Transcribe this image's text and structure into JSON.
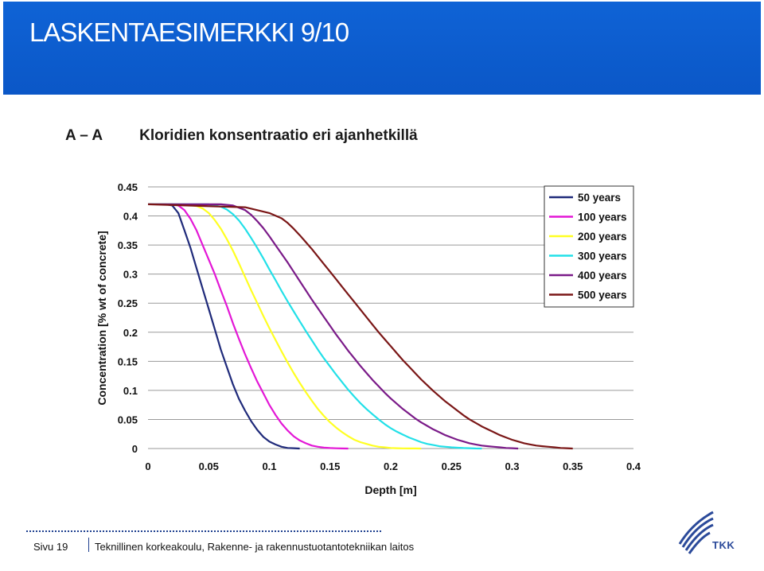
{
  "slide": {
    "title": "LASKENTAESIMERKKI 9/10"
  },
  "chart_heading": {
    "section": "A – A",
    "title": "Kloridien konsentraatio eri ajanhetkillä"
  },
  "footer": {
    "page": "Sivu 19",
    "organization": "Teknillinen korkeakoulu, Rakenne- ja rakennustuotantotekniikan laitos",
    "logo_text": "TKK"
  },
  "chart_data": {
    "type": "line",
    "xlabel": "Depth [m]",
    "ylabel": "Concentration [% wt of concrete]",
    "xlim": [
      0,
      0.4
    ],
    "ylim": [
      0,
      0.45
    ],
    "x_ticks": [
      "0",
      "0.05",
      "0.1",
      "0.15",
      "0.2",
      "0.25",
      "0.3",
      "0.35",
      "0.4"
    ],
    "y_ticks": [
      "0",
      "0.05",
      "0.1",
      "0.15",
      "0.2",
      "0.25",
      "0.3",
      "0.35",
      "0.4",
      "0.45"
    ],
    "grid": true,
    "legend_position": "top-right",
    "series": [
      {
        "name": "50 years",
        "color": "#1f2a7a",
        "x": [
          0,
          0.015,
          0.02,
          0.025,
          0.03,
          0.035,
          0.04,
          0.045,
          0.05,
          0.055,
          0.06,
          0.065,
          0.07,
          0.075,
          0.08,
          0.085,
          0.09,
          0.095,
          0.1,
          0.105,
          0.11,
          0.115,
          0.12,
          0.125
        ],
        "y": [
          0.42,
          0.42,
          0.418,
          0.405,
          0.375,
          0.345,
          0.31,
          0.275,
          0.24,
          0.205,
          0.17,
          0.14,
          0.11,
          0.085,
          0.065,
          0.047,
          0.032,
          0.02,
          0.012,
          0.007,
          0.003,
          0.001,
          0.0005,
          0
        ]
      },
      {
        "name": "100 years",
        "color": "#e317d6",
        "x": [
          0,
          0.02,
          0.025,
          0.03,
          0.035,
          0.04,
          0.045,
          0.05,
          0.055,
          0.06,
          0.065,
          0.07,
          0.075,
          0.08,
          0.085,
          0.09,
          0.095,
          0.1,
          0.105,
          0.11,
          0.115,
          0.12,
          0.125,
          0.13,
          0.135,
          0.14,
          0.145,
          0.15,
          0.155,
          0.16,
          0.165
        ],
        "y": [
          0.42,
          0.42,
          0.418,
          0.41,
          0.395,
          0.375,
          0.35,
          0.325,
          0.3,
          0.272,
          0.245,
          0.215,
          0.188,
          0.162,
          0.138,
          0.115,
          0.095,
          0.075,
          0.058,
          0.043,
          0.031,
          0.021,
          0.014,
          0.009,
          0.005,
          0.003,
          0.0015,
          0.0008,
          0.0004,
          0.0002,
          0
        ]
      },
      {
        "name": "200 years",
        "color": "#ffff22",
        "x": [
          0,
          0.03,
          0.04,
          0.045,
          0.05,
          0.055,
          0.06,
          0.065,
          0.07,
          0.075,
          0.08,
          0.085,
          0.09,
          0.095,
          0.1,
          0.105,
          0.11,
          0.115,
          0.12,
          0.125,
          0.13,
          0.135,
          0.14,
          0.145,
          0.15,
          0.155,
          0.16,
          0.165,
          0.17,
          0.175,
          0.18,
          0.185,
          0.19,
          0.195,
          0.2,
          0.205,
          0.21,
          0.215,
          0.22,
          0.225
        ],
        "y": [
          0.42,
          0.42,
          0.417,
          0.413,
          0.405,
          0.393,
          0.378,
          0.36,
          0.34,
          0.318,
          0.295,
          0.272,
          0.25,
          0.228,
          0.207,
          0.187,
          0.167,
          0.148,
          0.13,
          0.113,
          0.097,
          0.082,
          0.068,
          0.056,
          0.045,
          0.036,
          0.028,
          0.021,
          0.015,
          0.011,
          0.008,
          0.005,
          0.003,
          0.002,
          0.001,
          0.0006,
          0.0003,
          0.0002,
          0.0001,
          0
        ]
      },
      {
        "name": "300 years",
        "color": "#22e0e8",
        "x": [
          0,
          0.05,
          0.06,
          0.065,
          0.07,
          0.075,
          0.08,
          0.085,
          0.09,
          0.095,
          0.1,
          0.105,
          0.11,
          0.115,
          0.12,
          0.125,
          0.13,
          0.135,
          0.14,
          0.145,
          0.15,
          0.155,
          0.16,
          0.165,
          0.17,
          0.175,
          0.18,
          0.185,
          0.19,
          0.195,
          0.2,
          0.205,
          0.21,
          0.215,
          0.22,
          0.225,
          0.23,
          0.235,
          0.24,
          0.245,
          0.25,
          0.255,
          0.26,
          0.265,
          0.27,
          0.275
        ],
        "y": [
          0.42,
          0.42,
          0.416,
          0.411,
          0.403,
          0.392,
          0.378,
          0.362,
          0.345,
          0.327,
          0.308,
          0.29,
          0.271,
          0.253,
          0.236,
          0.219,
          0.202,
          0.186,
          0.17,
          0.155,
          0.141,
          0.127,
          0.114,
          0.101,
          0.089,
          0.078,
          0.068,
          0.059,
          0.05,
          0.042,
          0.035,
          0.029,
          0.024,
          0.019,
          0.015,
          0.011,
          0.008,
          0.006,
          0.004,
          0.003,
          0.002,
          0.0013,
          0.0008,
          0.0005,
          0.0002,
          0
        ]
      },
      {
        "name": "400 years",
        "color": "#7a1a88",
        "x": [
          0,
          0.06,
          0.07,
          0.08,
          0.085,
          0.09,
          0.095,
          0.1,
          0.105,
          0.11,
          0.115,
          0.12,
          0.125,
          0.13,
          0.135,
          0.14,
          0.145,
          0.15,
          0.155,
          0.16,
          0.165,
          0.17,
          0.175,
          0.18,
          0.185,
          0.19,
          0.195,
          0.2,
          0.205,
          0.21,
          0.215,
          0.22,
          0.225,
          0.23,
          0.235,
          0.24,
          0.245,
          0.25,
          0.255,
          0.26,
          0.265,
          0.27,
          0.275,
          0.28,
          0.285,
          0.29,
          0.295,
          0.3,
          0.305
        ],
        "y": [
          0.42,
          0.42,
          0.418,
          0.41,
          0.402,
          0.391,
          0.379,
          0.365,
          0.35,
          0.335,
          0.32,
          0.304,
          0.288,
          0.272,
          0.256,
          0.241,
          0.226,
          0.211,
          0.196,
          0.182,
          0.168,
          0.155,
          0.142,
          0.13,
          0.118,
          0.107,
          0.096,
          0.086,
          0.077,
          0.068,
          0.06,
          0.052,
          0.045,
          0.039,
          0.033,
          0.028,
          0.023,
          0.019,
          0.015,
          0.012,
          0.009,
          0.007,
          0.005,
          0.004,
          0.003,
          0.002,
          0.001,
          0.0005,
          0
        ]
      },
      {
        "name": "500 years",
        "color": "#7a1616",
        "x": [
          0,
          0.08,
          0.1,
          0.11,
          0.115,
          0.12,
          0.125,
          0.13,
          0.135,
          0.14,
          0.145,
          0.15,
          0.155,
          0.16,
          0.165,
          0.17,
          0.175,
          0.18,
          0.185,
          0.19,
          0.195,
          0.2,
          0.205,
          0.21,
          0.215,
          0.22,
          0.225,
          0.23,
          0.235,
          0.24,
          0.245,
          0.25,
          0.255,
          0.26,
          0.265,
          0.27,
          0.275,
          0.28,
          0.285,
          0.29,
          0.295,
          0.3,
          0.305,
          0.31,
          0.315,
          0.32,
          0.325,
          0.33,
          0.335,
          0.34,
          0.345,
          0.35
        ],
        "y": [
          0.42,
          0.415,
          0.405,
          0.396,
          0.388,
          0.378,
          0.367,
          0.355,
          0.343,
          0.33,
          0.317,
          0.304,
          0.291,
          0.278,
          0.265,
          0.252,
          0.239,
          0.226,
          0.213,
          0.2,
          0.188,
          0.176,
          0.164,
          0.152,
          0.141,
          0.13,
          0.119,
          0.109,
          0.099,
          0.09,
          0.081,
          0.073,
          0.065,
          0.057,
          0.05,
          0.044,
          0.038,
          0.033,
          0.028,
          0.023,
          0.019,
          0.015,
          0.012,
          0.009,
          0.007,
          0.005,
          0.004,
          0.003,
          0.002,
          0.001,
          0.0005,
          0
        ]
      }
    ]
  }
}
